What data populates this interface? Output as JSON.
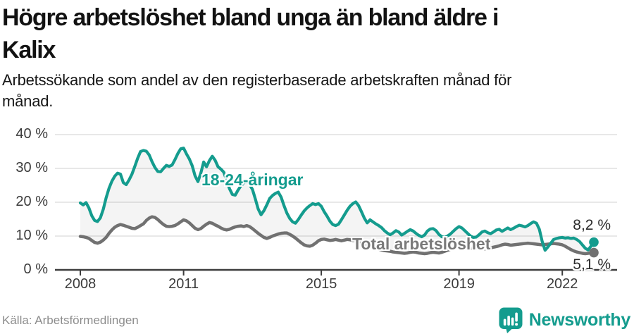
{
  "header": {
    "title": "Högre arbetslöshet bland unga än bland äldre i Kalix",
    "title_lines": [
      "Högre arbetslöshet bland unga än bland äldre i",
      "Kalix"
    ],
    "subtitle": "Arbetssökande som andel av den registerbaserade arbetskraften månad för månad.",
    "subtitle_lines": [
      "Arbetssökande som andel av den registerbaserade arbetskraften månad för",
      "månad."
    ]
  },
  "footer": {
    "source": "Källa: Arbetsförmedlingen",
    "brand": "Newsworthy"
  },
  "colors": {
    "accent": "#149c8e",
    "gray_line": "#717171",
    "grid": "#dadada",
    "axis": "#3d3d3d",
    "band": "rgba(0,0,0,0.045)",
    "text": "#121212",
    "muted": "#8c8c8c"
  },
  "chart_data": {
    "type": "line",
    "title": "Högre arbetslöshet bland unga än bland äldre i Kalix",
    "xlabel": "",
    "ylabel": "",
    "frequency": "monthly",
    "x_start": "2008-01",
    "x_end": "2022-12",
    "ylim": [
      0,
      42
    ],
    "grid": true,
    "y_ticks": [
      {
        "label": "0 %",
        "value": 0
      },
      {
        "label": "10 %",
        "value": 10
      },
      {
        "label": "20 %",
        "value": 20
      },
      {
        "label": "30 %",
        "value": 30
      },
      {
        "label": "40 %",
        "value": 40
      }
    ],
    "x_ticks": [
      {
        "label": "2008",
        "month": 0
      },
      {
        "label": "2011",
        "month": 36
      },
      {
        "label": "2015",
        "month": 84
      },
      {
        "label": "2019",
        "month": 132
      },
      {
        "label": "2022",
        "month": 168
      }
    ],
    "series": [
      {
        "name": "18-24-åringar",
        "color": "#149c8e",
        "end_label": "8,2 %",
        "end_value": 8.2,
        "values": [
          19.8,
          19.2,
          19.9,
          18.3,
          16.0,
          14.6,
          14.3,
          15.4,
          17.9,
          21.3,
          24.1,
          26.2,
          27.7,
          28.6,
          28.3,
          25.8,
          25.2,
          26.6,
          28.3,
          30.6,
          33.0,
          35.0,
          35.3,
          35.1,
          34.0,
          32.0,
          30.3,
          29.1,
          29.0,
          30.0,
          30.9,
          30.6,
          31.0,
          32.6,
          34.4,
          35.8,
          36.0,
          34.3,
          32.8,
          30.8,
          27.8,
          26.1,
          28.6,
          31.9,
          30.5,
          32.3,
          33.6,
          32.4,
          30.5,
          29.8,
          28.9,
          26.5,
          24.0,
          22.3,
          22.1,
          23.6,
          24.9,
          25.7,
          26.3,
          25.2,
          23.8,
          21.0,
          18.0,
          16.3,
          17.5,
          19.2,
          21.1,
          22.0,
          22.6,
          23.0,
          21.5,
          19.0,
          16.8,
          15.2,
          14.2,
          13.8,
          14.9,
          16.2,
          17.4,
          18.3,
          19.0,
          19.6,
          19.3,
          19.6,
          18.8,
          17.2,
          15.9,
          14.4,
          13.4,
          13.1,
          13.5,
          14.8,
          16.2,
          17.6,
          18.8,
          19.6,
          20.1,
          19.0,
          17.2,
          15.3,
          13.9,
          14.8,
          14.2,
          13.6,
          13.1,
          12.5,
          11.6,
          10.9,
          10.4,
          10.9,
          11.6,
          11.2,
          10.3,
          10.8,
          11.4,
          11.9,
          11.5,
          10.8,
          10.2,
          9.8,
          10.3,
          11.5,
          12.1,
          12.2,
          11.6,
          10.5,
          9.8,
          9.6,
          10.0,
          10.6,
          11.4,
          12.2,
          12.8,
          12.4,
          11.6,
          10.8,
          10.0,
          9.6,
          9.7,
          10.4,
          11.2,
          11.5,
          11.0,
          10.7,
          11.2,
          11.8,
          12.0,
          11.4,
          11.9,
          12.4,
          11.9,
          12.3,
          12.8,
          13.2,
          13.0,
          12.7,
          13.1,
          13.7,
          14.2,
          13.8,
          12.0,
          8.4,
          5.8,
          6.8,
          7.9,
          9.0,
          9.3,
          9.5,
          9.6,
          9.4,
          9.5,
          9.3,
          9.4,
          9.0,
          8.4,
          7.4,
          6.4,
          5.9,
          7.0,
          8.2
        ]
      },
      {
        "name": "Total arbetslöshet",
        "color": "#717171",
        "end_label": "5,1 %",
        "end_value": 5.1,
        "values": [
          9.9,
          9.8,
          9.6,
          9.3,
          8.7,
          8.1,
          7.9,
          8.2,
          8.8,
          9.6,
          10.8,
          11.8,
          12.6,
          13.1,
          13.4,
          13.2,
          12.9,
          12.6,
          12.3,
          12.2,
          12.6,
          13.1,
          13.6,
          14.6,
          15.3,
          15.7,
          15.5,
          14.9,
          14.1,
          13.4,
          12.9,
          12.8,
          12.9,
          13.1,
          13.6,
          14.2,
          14.8,
          14.5,
          13.9,
          13.1,
          12.3,
          11.9,
          12.2,
          12.9,
          13.5,
          14.0,
          13.8,
          13.3,
          12.9,
          12.4,
          12.0,
          11.8,
          12.0,
          12.4,
          12.7,
          12.9,
          13.0,
          12.8,
          13.1,
          12.8,
          12.2,
          11.5,
          10.8,
          10.2,
          9.6,
          9.3,
          9.6,
          10.0,
          10.3,
          10.6,
          10.8,
          10.9,
          10.9,
          10.5,
          10.0,
          9.4,
          8.7,
          8.0,
          7.4,
          7.1,
          7.0,
          7.3,
          7.9,
          8.6,
          9.0,
          9.1,
          8.9,
          8.7,
          8.8,
          9.0,
          8.8,
          8.6,
          8.8,
          9.0,
          8.9,
          8.7,
          8.8,
          8.5,
          8.2,
          7.8,
          7.4,
          7.0,
          6.7,
          6.4,
          6.1,
          5.9,
          5.7,
          5.6,
          5.5,
          5.3,
          5.2,
          5.1,
          5.0,
          4.9,
          5.0,
          5.2,
          5.3,
          5.2,
          5.0,
          4.9,
          4.8,
          4.9,
          5.1,
          5.2,
          5.1,
          5.0,
          5.2,
          5.5,
          5.8,
          6.1,
          6.4,
          6.7,
          6.9,
          7.0,
          6.8,
          6.6,
          6.4,
          6.2,
          6.3,
          6.5,
          6.4,
          6.2,
          6.3,
          6.5,
          6.7,
          6.9,
          7.1,
          7.4,
          7.6,
          7.5,
          7.3,
          7.4,
          7.5,
          7.6,
          7.7,
          7.8,
          7.9,
          7.8,
          7.7,
          7.6,
          7.5,
          7.4,
          7.5,
          7.6,
          7.7,
          7.8,
          7.7,
          7.6,
          7.4,
          7.0,
          6.5,
          6.0,
          5.6,
          5.3,
          5.1,
          4.9,
          4.8,
          4.9,
          5.0,
          5.1
        ]
      }
    ],
    "legend_position": "inline-labels"
  }
}
